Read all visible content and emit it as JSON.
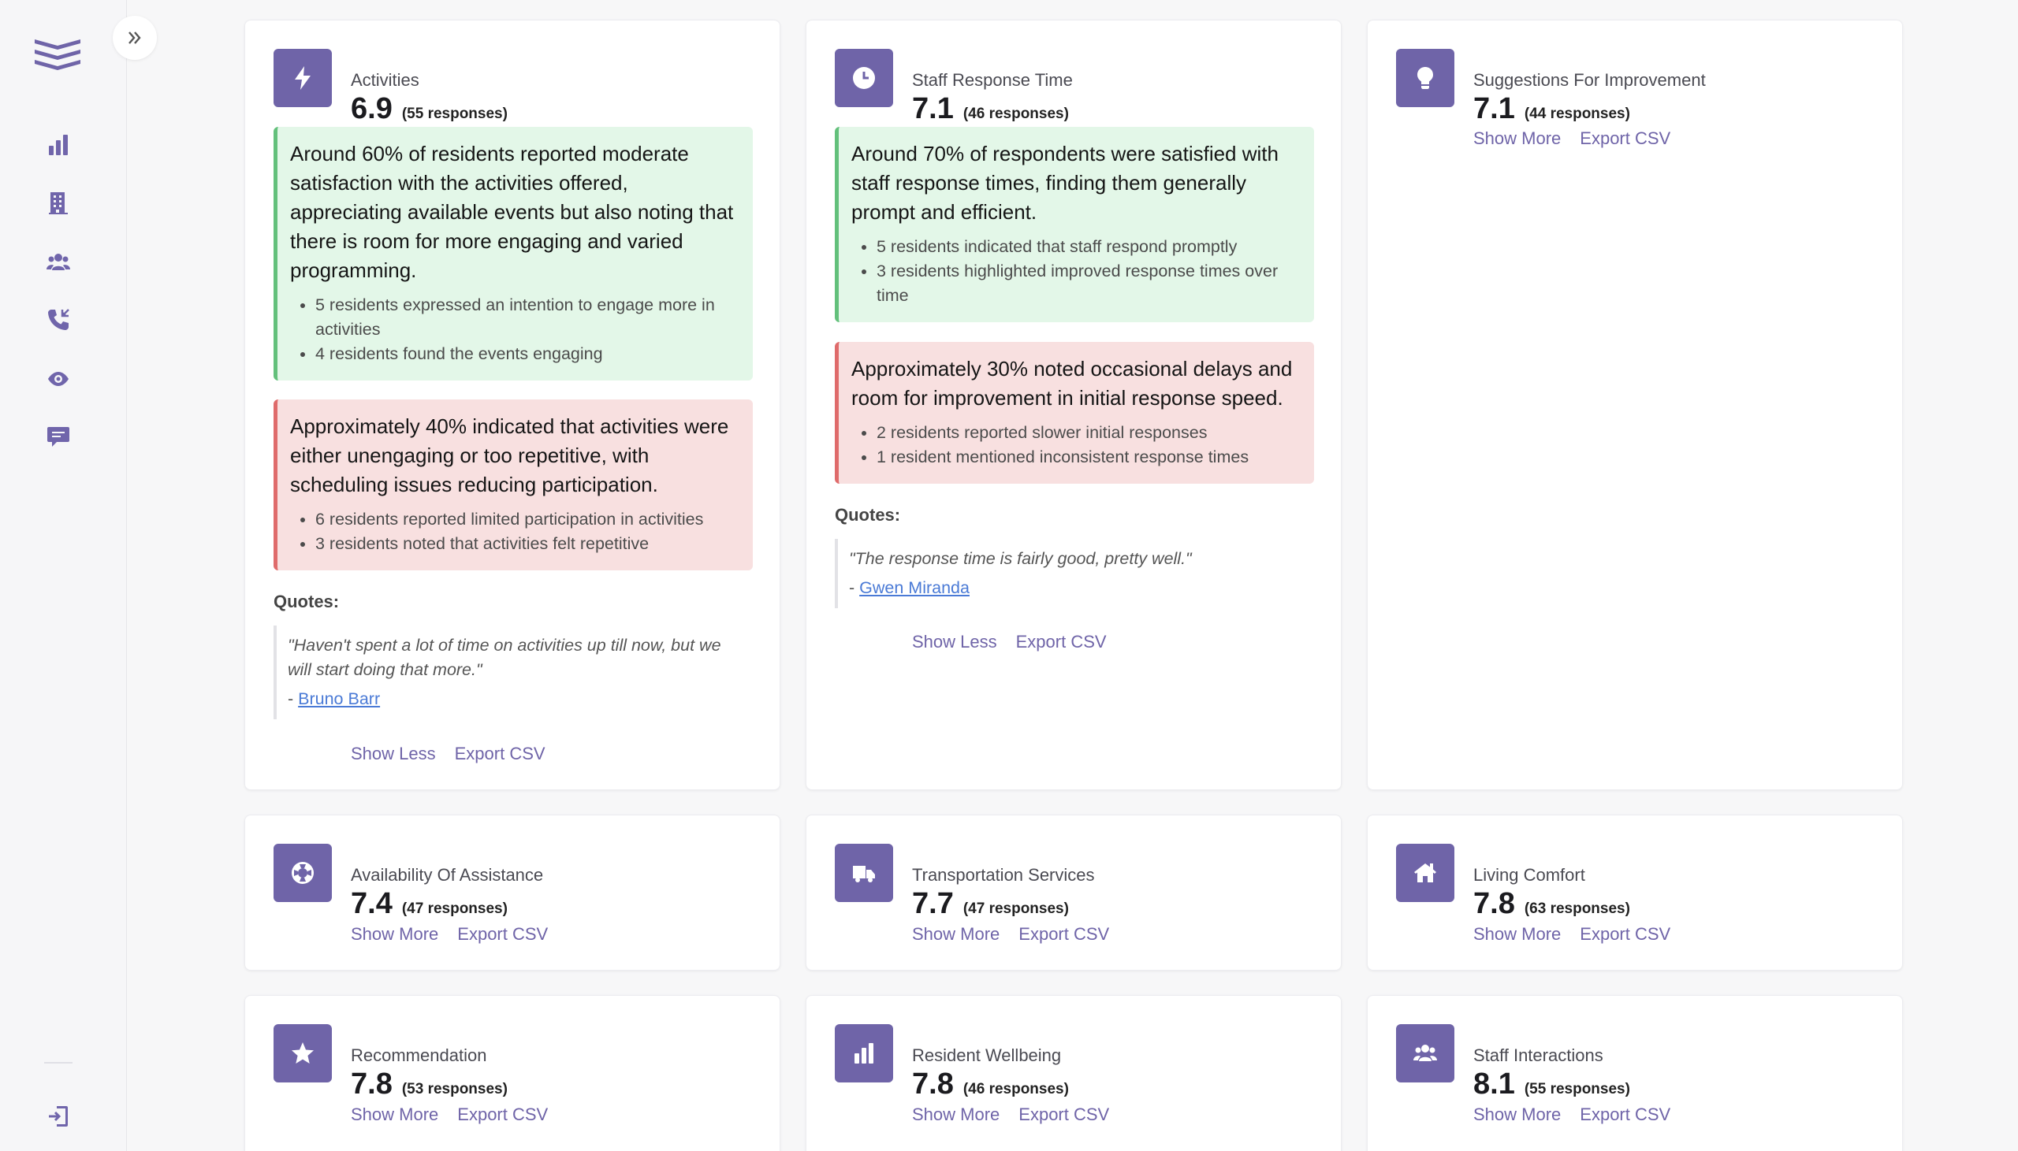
{
  "sidebar": {
    "logo_icon": "layers-logo",
    "nav": [
      {
        "icon": "bar-chart-icon"
      },
      {
        "icon": "building-icon"
      },
      {
        "icon": "users-icon"
      },
      {
        "icon": "phone-incoming-icon"
      },
      {
        "icon": "eye-icon"
      },
      {
        "icon": "comment-icon"
      }
    ],
    "bottom_icon": "logout-icon",
    "expand_icon": "double-chevron-right-icon"
  },
  "accent_color": "#6f64a8",
  "cards": {
    "activities": {
      "title": "Activities",
      "score": "6.9",
      "responses": "(55 responses)",
      "positive": {
        "text": "Around 60% of residents reported moderate satisfaction with the activities offered, appreciating available events but also noting that there is room for more engaging and varied programming.",
        "bullets": [
          "5 residents expressed an intention to engage more in activities",
          "4 residents found the events engaging"
        ]
      },
      "negative": {
        "text": "Approximately 40% indicated that activities were either unengaging or too repetitive, with scheduling issues reducing participation.",
        "bullets": [
          "6 residents reported limited participation in activities",
          "3 residents noted that activities felt repetitive"
        ]
      },
      "quotes_label": "Quotes:",
      "quote": {
        "text": "\"Haven't spent a lot of time on activities up till now, but we will start doing that more.\"",
        "dash": "- ",
        "author": "Bruno Barr"
      },
      "show_label": "Show Less",
      "export_label": "Export CSV"
    },
    "staff_response": {
      "title": "Staff Response Time",
      "score": "7.1",
      "responses": "(46 responses)",
      "positive": {
        "text": "Around 70% of respondents were satisfied with staff response times, finding them generally prompt and efficient.",
        "bullets": [
          "5 residents indicated that staff respond promptly",
          "3 residents highlighted improved response times over time"
        ]
      },
      "negative": {
        "text": "Approximately 30% noted occasional delays and room for improvement in initial response speed.",
        "bullets": [
          "2 residents reported slower initial responses",
          "1 resident mentioned inconsistent response times"
        ]
      },
      "quotes_label": "Quotes:",
      "quote": {
        "text": "\"The response time is fairly good, pretty well.\"",
        "dash": "- ",
        "author": "Gwen Miranda"
      },
      "show_label": "Show Less",
      "export_label": "Export CSV"
    },
    "suggestions": {
      "title": "Suggestions For Improvement",
      "score": "7.1",
      "responses": "(44 responses)",
      "show_label": "Show More",
      "export_label": "Export CSV"
    },
    "assistance": {
      "title": "Availability Of Assistance",
      "score": "7.4",
      "responses": "(47 responses)",
      "show_label": "Show More",
      "export_label": "Export CSV"
    },
    "transportation": {
      "title": "Transportation Services",
      "score": "7.7",
      "responses": "(47 responses)",
      "show_label": "Show More",
      "export_label": "Export CSV"
    },
    "living": {
      "title": "Living Comfort",
      "score": "7.8",
      "responses": "(63 responses)",
      "show_label": "Show More",
      "export_label": "Export CSV"
    },
    "recommendation": {
      "title": "Recommendation",
      "score": "7.8",
      "responses": "(53 responses)",
      "show_label": "Show More",
      "export_label": "Export CSV"
    },
    "wellbeing": {
      "title": "Resident Wellbeing",
      "score": "7.8",
      "responses": "(46 responses)",
      "show_label": "Show More",
      "export_label": "Export CSV"
    },
    "staff_interactions": {
      "title": "Staff Interactions",
      "score": "8.1",
      "responses": "(55 responses)",
      "show_label": "Show More",
      "export_label": "Export CSV"
    }
  }
}
